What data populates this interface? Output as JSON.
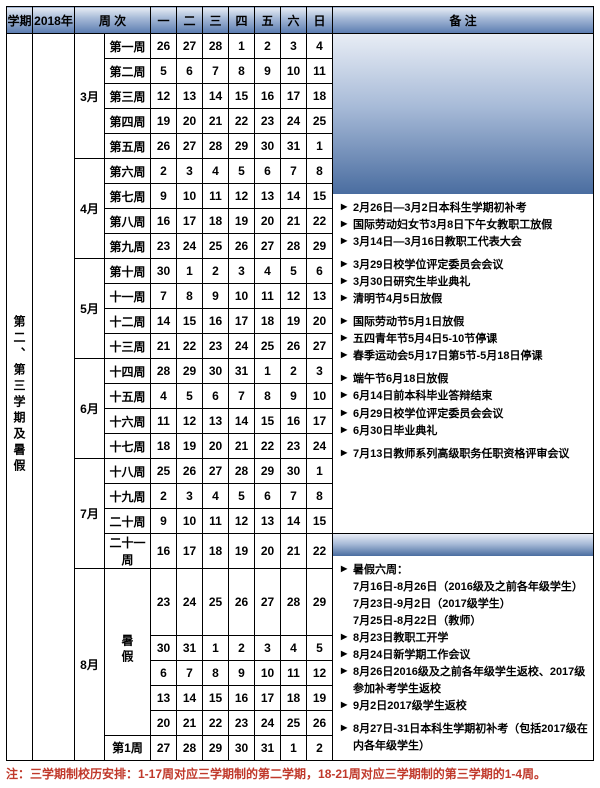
{
  "header": {
    "semester": "学期",
    "year": "2018年",
    "week_col": "周 次",
    "days": [
      "一",
      "二",
      "三",
      "四",
      "五",
      "六",
      "日"
    ],
    "notes": "备  注"
  },
  "semester_label": "第二、第三学期及暑假",
  "months": [
    {
      "label": "3月",
      "rows": [
        {
          "wk": "第一周",
          "d": [
            "26",
            "27",
            "28",
            "1",
            "2",
            "3",
            "4"
          ]
        },
        {
          "wk": "第二周",
          "d": [
            "5",
            "6",
            "7",
            "8",
            "9",
            "10",
            "11"
          ]
        },
        {
          "wk": "第三周",
          "d": [
            "12",
            "13",
            "14",
            "15",
            "16",
            "17",
            "18"
          ]
        },
        {
          "wk": "第四周",
          "d": [
            "19",
            "20",
            "21",
            "22",
            "23",
            "24",
            "25"
          ]
        },
        {
          "wk": "第五周",
          "d": [
            "26",
            "27",
            "28",
            "29",
            "30",
            "31",
            "1"
          ]
        }
      ]
    },
    {
      "label": "4月",
      "rows": [
        {
          "wk": "第六周",
          "d": [
            "2",
            "3",
            "4",
            "5",
            "6",
            "7",
            "8"
          ]
        },
        {
          "wk": "第七周",
          "d": [
            "9",
            "10",
            "11",
            "12",
            "13",
            "14",
            "15"
          ]
        },
        {
          "wk": "第八周",
          "d": [
            "16",
            "17",
            "18",
            "19",
            "20",
            "21",
            "22"
          ]
        },
        {
          "wk": "第九周",
          "d": [
            "23",
            "24",
            "25",
            "26",
            "27",
            "28",
            "29"
          ]
        }
      ]
    },
    {
      "label": "5月",
      "rows": [
        {
          "wk": "第十周",
          "d": [
            "30",
            "1",
            "2",
            "3",
            "4",
            "5",
            "6"
          ]
        },
        {
          "wk": "十一周",
          "d": [
            "7",
            "8",
            "9",
            "10",
            "11",
            "12",
            "13"
          ]
        },
        {
          "wk": "十二周",
          "d": [
            "14",
            "15",
            "16",
            "17",
            "18",
            "19",
            "20"
          ]
        },
        {
          "wk": "十三周",
          "d": [
            "21",
            "22",
            "23",
            "24",
            "25",
            "26",
            "27"
          ]
        }
      ]
    },
    {
      "label": "6月",
      "rows": [
        {
          "wk": "十四周",
          "d": [
            "28",
            "29",
            "30",
            "31",
            "1",
            "2",
            "3"
          ]
        },
        {
          "wk": "十五周",
          "d": [
            "4",
            "5",
            "6",
            "7",
            "8",
            "9",
            "10"
          ]
        },
        {
          "wk": "十六周",
          "d": [
            "11",
            "12",
            "13",
            "14",
            "15",
            "16",
            "17"
          ]
        },
        {
          "wk": "十七周",
          "d": [
            "18",
            "19",
            "20",
            "21",
            "22",
            "23",
            "24"
          ]
        }
      ]
    },
    {
      "label": "7月",
      "rows": [
        {
          "wk": "十八周",
          "d": [
            "25",
            "26",
            "27",
            "28",
            "29",
            "30",
            "1"
          ]
        },
        {
          "wk": "十九周",
          "d": [
            "2",
            "3",
            "4",
            "5",
            "6",
            "7",
            "8"
          ]
        },
        {
          "wk": "二十周",
          "d": [
            "9",
            "10",
            "11",
            "12",
            "13",
            "14",
            "15"
          ]
        },
        {
          "wk": "二十一周",
          "d": [
            "16",
            "17",
            "18",
            "19",
            "20",
            "21",
            "22"
          ]
        }
      ]
    },
    {
      "label": "8月",
      "vacation_label": "暑假",
      "vac_rows": [
        {
          "d": [
            "23",
            "24",
            "25",
            "26",
            "27",
            "28",
            "29"
          ]
        },
        {
          "d": [
            "30",
            "31",
            "1",
            "2",
            "3",
            "4",
            "5"
          ]
        },
        {
          "d": [
            "6",
            "7",
            "8",
            "9",
            "10",
            "11",
            "12"
          ]
        },
        {
          "d": [
            "13",
            "14",
            "15",
            "16",
            "17",
            "18",
            "19"
          ]
        },
        {
          "d": [
            "20",
            "21",
            "22",
            "23",
            "24",
            "25",
            "26"
          ]
        }
      ],
      "last_row": {
        "wk": "第1周",
        "d": [
          "27",
          "28",
          "29",
          "30",
          "31",
          "1",
          "2"
        ]
      }
    }
  ],
  "notes_block1": [
    "2月26日—3月2日本科生学期初补考",
    "国际劳动妇女节3月8日下午女教职工放假",
    "3月14日—3月16日教职工代表大会",
    "",
    "3月29日校学位评定委员会会议",
    "3月30日研究生毕业典礼",
    "清明节4月5日放假",
    "",
    "国际劳动节5月1日放假",
    "五四青年节5月4日5-10节停课",
    "春季运动会5月17日第5节-5月18日停课",
    "",
    "端午节6月18日放假",
    "6月14日前本科毕业答辩结束",
    "6月29日校学位评定委员会会议",
    "6月30日毕业典礼",
    "",
    "7月13日教师系列高级职务任职资格评审会议"
  ],
  "notes_block2_title": "暑假六周：",
  "notes_block2_sub": [
    "7月16日-8月26日（2016级及之前各年级学生）",
    "7月23日-9月2日（2017级学生）",
    "7月25日-8月22日（教师）"
  ],
  "notes_block2": [
    "8月23日教职工开学",
    "8月24日新学期工作会议",
    "8月26日2016级及之前各年级学生返校、2017级参加补考学生返校",
    "9月2日2017级学生返校",
    "",
    "8月27日-31日本科生学期初补考（包括2017级在内各年级学生）"
  ],
  "footnote": "注：三学期制校历安排：1-17周对应三学期制的第二学期，18-21周对应三学期制的第三学期的1-4周。"
}
